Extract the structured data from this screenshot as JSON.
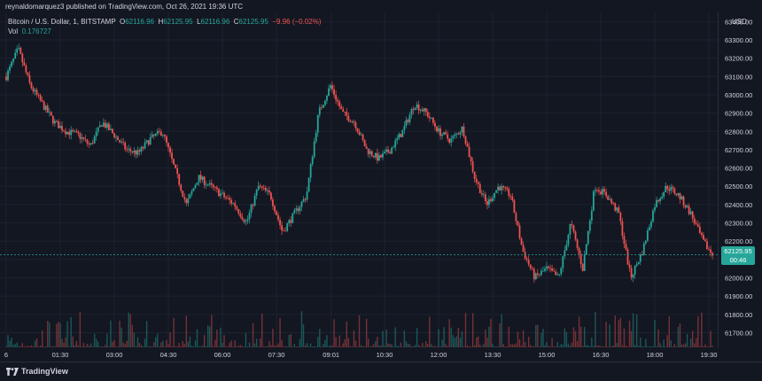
{
  "header": {
    "publisher_text": "reynaldomarquez3 published on TradingView.com, Oct 26, 2021 19:36 UTC"
  },
  "legend": {
    "symbol": "Bitcoin / U.S. Dollar, 1, BITSTAMP",
    "o_label": "O",
    "o_value": "62116.96",
    "h_label": "H",
    "h_value": "62125.95",
    "l_label": "L",
    "l_value": "62116.96",
    "c_label": "C",
    "c_value": "62125.95",
    "change": "−9.96 (−0.02%)",
    "vol_label": "Vol",
    "vol_value": "0.176727"
  },
  "price_axis": {
    "currency": "USD",
    "last_price": "62125.95",
    "countdown": "00:46"
  },
  "footer": {
    "brand": "TradingView"
  },
  "colors": {
    "up": "#26a69a",
    "down": "#ef5350",
    "background": "#131722",
    "grid": "#1e222d",
    "text": "#d1d4dc"
  },
  "chart_data": {
    "type": "candlestick",
    "symbol": "Bitcoin / U.S. Dollar",
    "interval": "1",
    "exchange": "BITSTAMP",
    "ylim": [
      61620,
      63450
    ],
    "y_ticks": [
      "63400.00",
      "63300.00",
      "63200.00",
      "63100.00",
      "63000.00",
      "62900.00",
      "62800.00",
      "62700.00",
      "62600.00",
      "62500.00",
      "62400.00",
      "62300.00",
      "62200.00",
      "62100.00",
      "62000.00",
      "61900.00",
      "61800.00",
      "61700.00"
    ],
    "x_ticks": [
      "6",
      "01:30",
      "03:00",
      "04:30",
      "06:00",
      "07:30",
      "09:01",
      "10:30",
      "12:00",
      "13:30",
      "15:00",
      "16:30",
      "18:00",
      "19:30"
    ],
    "grid": true,
    "approx_close_path": [
      [
        "00:00",
        63100
      ],
      [
        "00:20",
        63250
      ],
      [
        "00:40",
        63050
      ],
      [
        "01:00",
        62950
      ],
      [
        "01:20",
        62850
      ],
      [
        "01:40",
        62800
      ],
      [
        "02:00",
        62780
      ],
      [
        "02:20",
        62720
      ],
      [
        "02:40",
        62850
      ],
      [
        "03:00",
        62780
      ],
      [
        "03:20",
        62700
      ],
      [
        "03:40",
        62680
      ],
      [
        "04:00",
        62760
      ],
      [
        "04:20",
        62800
      ],
      [
        "04:40",
        62600
      ],
      [
        "05:00",
        62400
      ],
      [
        "05:20",
        62550
      ],
      [
        "05:40",
        62500
      ],
      [
        "06:00",
        62450
      ],
      [
        "06:20",
        62400
      ],
      [
        "06:40",
        62300
      ],
      [
        "07:00",
        62500
      ],
      [
        "07:20",
        62450
      ],
      [
        "07:40",
        62250
      ],
      [
        "08:00",
        62350
      ],
      [
        "08:20",
        62450
      ],
      [
        "08:40",
        62900
      ],
      [
        "09:00",
        63050
      ],
      [
        "09:20",
        62900
      ],
      [
        "09:40",
        62850
      ],
      [
        "10:00",
        62700
      ],
      [
        "10:20",
        62650
      ],
      [
        "10:40",
        62700
      ],
      [
        "11:00",
        62800
      ],
      [
        "11:20",
        62950
      ],
      [
        "11:40",
        62900
      ],
      [
        "12:00",
        62800
      ],
      [
        "12:20",
        62750
      ],
      [
        "12:40",
        62820
      ],
      [
        "13:00",
        62550
      ],
      [
        "13:20",
        62400
      ],
      [
        "13:40",
        62500
      ],
      [
        "14:00",
        62450
      ],
      [
        "14:20",
        62150
      ],
      [
        "14:40",
        62000
      ],
      [
        "15:00",
        62050
      ],
      [
        "15:20",
        62000
      ],
      [
        "15:40",
        62300
      ],
      [
        "16:00",
        62050
      ],
      [
        "16:20",
        62500
      ],
      [
        "16:40",
        62450
      ],
      [
        "17:00",
        62350
      ],
      [
        "17:20",
        62000
      ],
      [
        "17:40",
        62150
      ],
      [
        "18:00",
        62400
      ],
      [
        "18:20",
        62500
      ],
      [
        "18:40",
        62450
      ],
      [
        "19:00",
        62350
      ],
      [
        "19:20",
        62200
      ],
      [
        "19:36",
        62126
      ]
    ]
  }
}
